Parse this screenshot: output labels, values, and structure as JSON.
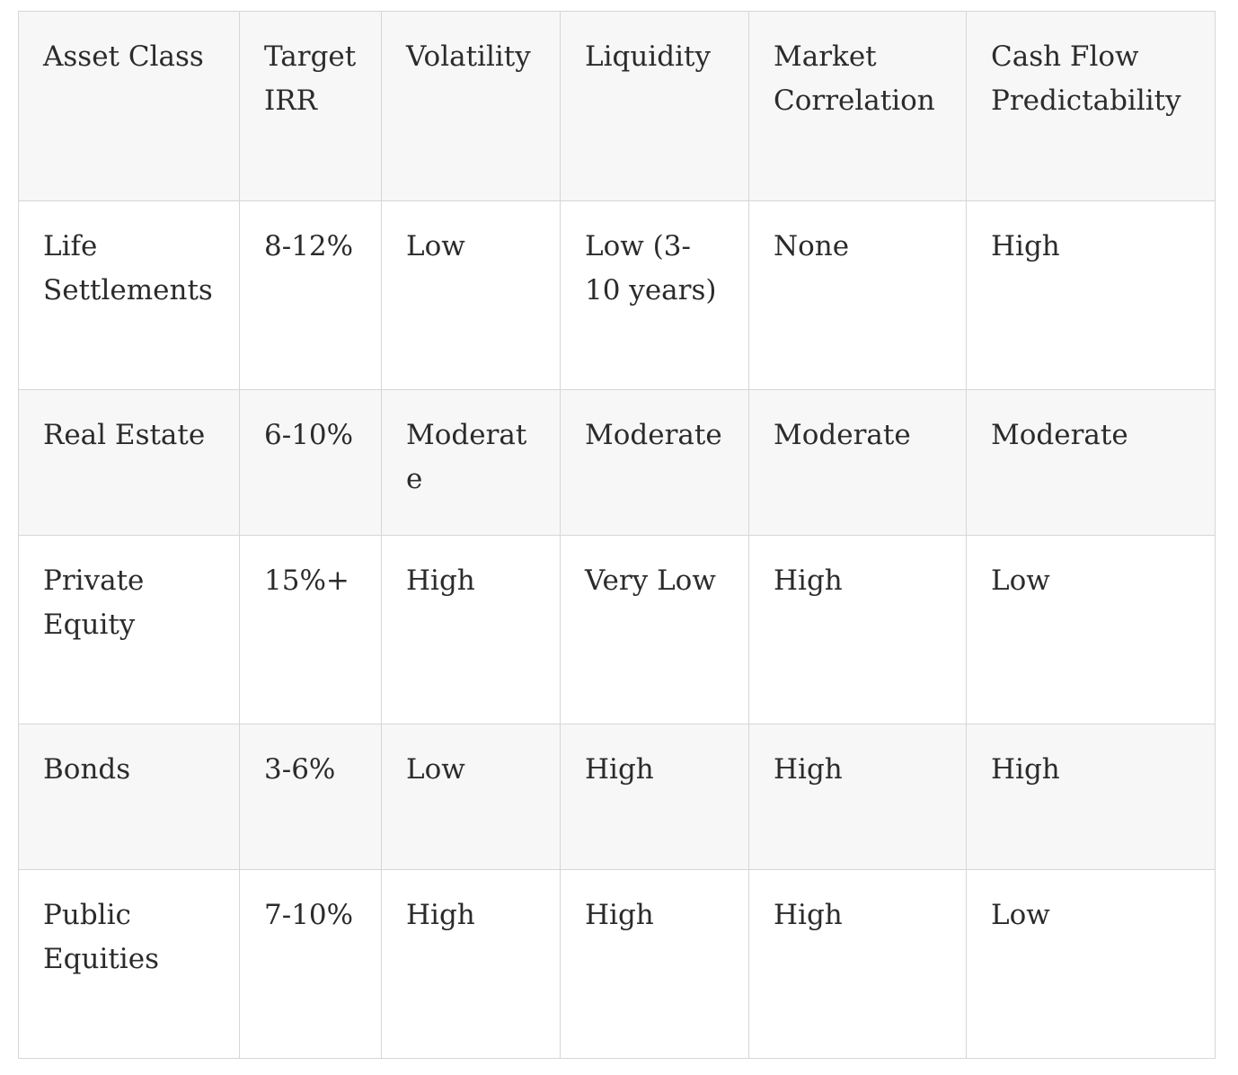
{
  "table": {
    "headers": [
      "Asset Class",
      "Target IRR",
      "Volatility",
      "Liquidity",
      "Market Correlation",
      "Cash Flow Predictability"
    ],
    "rows": [
      [
        "Life Settlements",
        "8-12%",
        "Low",
        "Low (3-10 years)",
        "None",
        "High"
      ],
      [
        "Real Estate",
        "6-10%",
        "Moderate",
        "Moderate",
        "Moderate",
        "Moderate"
      ],
      [
        "Private Equity",
        "15%+",
        "High",
        "Very Low",
        "High",
        "Low"
      ],
      [
        "Bonds",
        "3-6%",
        "Low",
        "High",
        "High",
        "High"
      ],
      [
        "Public Equities",
        "7-10%",
        "High",
        "High",
        "High",
        "Low"
      ]
    ]
  },
  "colors": {
    "border": "#d6d6d6",
    "shaded_row": "#f7f7f7",
    "text": "#2b2b2b"
  }
}
